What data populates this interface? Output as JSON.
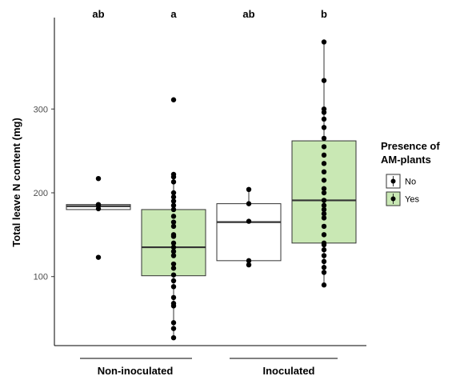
{
  "chart_data": {
    "type": "box",
    "title": "",
    "ylabel": "Total leave N content (mg)",
    "xlabel": "",
    "ylim": [
      10,
      390
    ],
    "yticks": [
      100,
      200,
      300
    ],
    "groups": [
      "Non-inoculated",
      "Inoculated"
    ],
    "legend": {
      "title_line1": "Presence of",
      "title_line2": "AM-plants",
      "placement": "right",
      "entries": [
        {
          "name": "No",
          "fill": "#ffffff"
        },
        {
          "name": "Yes",
          "fill": "#c9e8b4"
        }
      ]
    },
    "boxes": [
      {
        "group": "Non-inoculated",
        "presence": "No",
        "letter": "ab",
        "whisker_low": 180,
        "q1": 180,
        "median": 184,
        "q3": 186,
        "whisker_high": 186,
        "points": [
          217,
          186,
          185,
          181,
          123
        ]
      },
      {
        "group": "Non-inoculated",
        "presence": "Yes",
        "letter": "a",
        "whisker_low": 25,
        "q1": 101,
        "median": 135,
        "q3": 180,
        "whisker_high": 222,
        "points": [
          311,
          222,
          219,
          213,
          200,
          195,
          190,
          185,
          180,
          172,
          165,
          160,
          150,
          148,
          140,
          135,
          130,
          125,
          115,
          110,
          102,
          95,
          88,
          75,
          68,
          65,
          45,
          38,
          27
        ]
      },
      {
        "group": "Inoculated",
        "presence": "No",
        "letter": "ab",
        "whisker_low": 119,
        "q1": 119,
        "median": 165,
        "q3": 187,
        "whisker_high": 204,
        "points": [
          204,
          187,
          166,
          119,
          114
        ]
      },
      {
        "group": "Inoculated",
        "presence": "Yes",
        "letter": "b",
        "whisker_low": 90,
        "q1": 140,
        "median": 191,
        "q3": 262,
        "whisker_high": 380,
        "points": [
          380,
          334,
          300,
          296,
          288,
          278,
          265,
          255,
          245,
          235,
          225,
          215,
          205,
          200,
          191,
          185,
          180,
          175,
          170,
          160,
          150,
          140,
          138,
          132,
          125,
          118,
          111,
          105,
          90
        ]
      }
    ]
  }
}
